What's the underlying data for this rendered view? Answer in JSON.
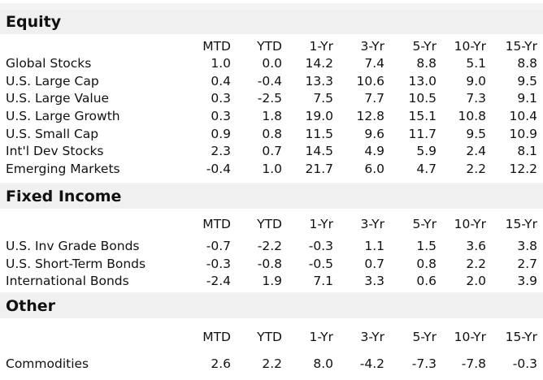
{
  "columns": [
    "MTD",
    "YTD",
    "1-Yr",
    "3-Yr",
    "5-Yr",
    "10-Yr",
    "15-Yr"
  ],
  "sections": [
    {
      "title": "Equity",
      "rows": [
        {
          "label": "Global Stocks",
          "values": [
            "1.0",
            "0.0",
            "14.2",
            "7.4",
            "8.8",
            "5.1",
            "8.8"
          ]
        },
        {
          "label": "U.S. Large Cap",
          "values": [
            "0.4",
            "-0.4",
            "13.3",
            "10.6",
            "13.0",
            "9.0",
            "9.5"
          ]
        },
        {
          "label": "U.S. Large Value",
          "values": [
            "0.3",
            "-2.5",
            "7.5",
            "7.7",
            "10.5",
            "7.3",
            "9.1"
          ]
        },
        {
          "label": "U.S. Large Growth",
          "values": [
            "0.3",
            "1.8",
            "19.0",
            "12.8",
            "15.1",
            "10.8",
            "10.4"
          ]
        },
        {
          "label": "U.S. Small Cap",
          "values": [
            "0.9",
            "0.8",
            "11.5",
            "9.6",
            "11.7",
            "9.5",
            "10.9"
          ]
        },
        {
          "label": "Int'l Dev Stocks",
          "values": [
            "2.3",
            "0.7",
            "14.5",
            "4.9",
            "5.9",
            "2.4",
            "8.1"
          ]
        },
        {
          "label": "Emerging Markets",
          "values": [
            "-0.4",
            "1.0",
            "21.7",
            "6.0",
            "4.7",
            "2.2",
            "12.2"
          ]
        }
      ]
    },
    {
      "title": "Fixed Income",
      "rows": [
        {
          "label": "U.S. Inv Grade Bonds",
          "values": [
            "-0.7",
            "-2.2",
            "-0.3",
            "1.1",
            "1.5",
            "3.6",
            "3.8"
          ]
        },
        {
          "label": "U.S. Short-Term Bonds",
          "values": [
            "-0.3",
            "-0.8",
            "-0.5",
            "0.7",
            "0.8",
            "2.2",
            "2.7"
          ]
        },
        {
          "label": "International Bonds",
          "values": [
            "-2.4",
            "1.9",
            "7.1",
            "3.3",
            "0.6",
            "2.0",
            "3.9"
          ]
        }
      ]
    },
    {
      "title": "Other",
      "rows": [
        {
          "label": "Commodities",
          "values": [
            "2.6",
            "2.2",
            "8.0",
            "-4.2",
            "-7.3",
            "-7.8",
            "-0.3"
          ]
        }
      ]
    }
  ]
}
